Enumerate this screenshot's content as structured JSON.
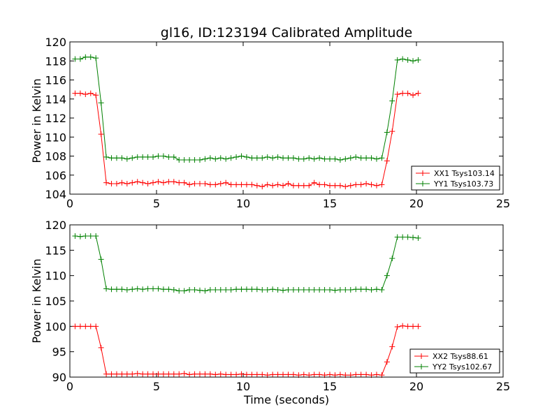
{
  "chart_data": [
    {
      "type": "line",
      "title": "gl16, ID:123194 Calibrated Amplitude",
      "xlabel": "",
      "ylabel": "Power in Kelvin",
      "xlim": [
        0,
        25
      ],
      "ylim": [
        104,
        120
      ],
      "xticks": [
        "0",
        "5",
        "10",
        "15",
        "20",
        "25"
      ],
      "yticks": [
        "104",
        "106",
        "108",
        "110",
        "112",
        "114",
        "116",
        "118",
        "120"
      ],
      "grid": false,
      "legend": "lower-right",
      "x": [
        0.3,
        0.6,
        0.9,
        1.2,
        1.5,
        1.8,
        2.1,
        2.4,
        2.7,
        3.0,
        3.3,
        3.6,
        3.9,
        4.2,
        4.5,
        4.8,
        5.1,
        5.4,
        5.7,
        6.0,
        6.3,
        6.6,
        6.9,
        7.2,
        7.5,
        7.8,
        8.1,
        8.4,
        8.7,
        9.0,
        9.3,
        9.6,
        9.9,
        10.2,
        10.5,
        10.8,
        11.1,
        11.4,
        11.7,
        12.0,
        12.3,
        12.6,
        12.9,
        13.2,
        13.5,
        13.8,
        14.1,
        14.4,
        14.7,
        15.0,
        15.3,
        15.6,
        15.9,
        16.2,
        16.5,
        16.8,
        17.1,
        17.4,
        17.7,
        18.0,
        18.3,
        18.6,
        18.9,
        19.2,
        19.5,
        19.8,
        20.1
      ],
      "series": [
        {
          "name": "XX1 Tsys103.14",
          "color": "#ff0000",
          "values": [
            114.6,
            114.6,
            114.5,
            114.6,
            114.4,
            110.3,
            105.2,
            105.1,
            105.1,
            105.2,
            105.1,
            105.2,
            105.3,
            105.2,
            105.1,
            105.2,
            105.3,
            105.2,
            105.3,
            105.3,
            105.2,
            105.2,
            105.0,
            105.1,
            105.1,
            105.1,
            105.0,
            105.0,
            105.1,
            105.2,
            105.0,
            105.0,
            105.0,
            105.0,
            105.0,
            104.9,
            104.8,
            105.0,
            104.9,
            105.0,
            104.9,
            105.1,
            104.9,
            104.9,
            104.9,
            104.9,
            105.2,
            105.0,
            105.0,
            104.9,
            104.9,
            104.9,
            104.8,
            104.9,
            105.0,
            105.0,
            105.1,
            105.0,
            104.9,
            105.0,
            107.5,
            110.6,
            114.5,
            114.6,
            114.6,
            114.4,
            114.6
          ]
        },
        {
          "name": "YY1 Tsys103.73",
          "color": "#008000",
          "values": [
            118.2,
            118.2,
            118.4,
            118.4,
            118.3,
            113.6,
            107.9,
            107.8,
            107.8,
            107.8,
            107.7,
            107.8,
            107.9,
            107.9,
            107.9,
            107.9,
            108.0,
            108.0,
            107.9,
            107.9,
            107.6,
            107.6,
            107.6,
            107.6,
            107.6,
            107.7,
            107.8,
            107.7,
            107.8,
            107.7,
            107.8,
            107.9,
            108.0,
            107.9,
            107.8,
            107.8,
            107.8,
            107.9,
            107.8,
            107.9,
            107.8,
            107.8,
            107.8,
            107.7,
            107.7,
            107.8,
            107.7,
            107.8,
            107.7,
            107.7,
            107.7,
            107.6,
            107.7,
            107.8,
            107.9,
            107.8,
            107.8,
            107.8,
            107.7,
            107.8,
            110.5,
            113.8,
            118.1,
            118.2,
            118.1,
            118.0,
            118.1
          ]
        }
      ]
    },
    {
      "type": "line",
      "title": "",
      "xlabel": "Time (seconds)",
      "ylabel": "Power in Kelvin",
      "xlim": [
        0,
        25
      ],
      "ylim": [
        90,
        120
      ],
      "xticks": [
        "0",
        "5",
        "10",
        "15",
        "20",
        "25"
      ],
      "yticks": [
        "90",
        "95",
        "100",
        "105",
        "110",
        "115",
        "120"
      ],
      "grid": false,
      "legend": "lower-right",
      "x": [
        0.3,
        0.6,
        0.9,
        1.2,
        1.5,
        1.8,
        2.1,
        2.4,
        2.7,
        3.0,
        3.3,
        3.6,
        3.9,
        4.2,
        4.5,
        4.8,
        5.1,
        5.4,
        5.7,
        6.0,
        6.3,
        6.6,
        6.9,
        7.2,
        7.5,
        7.8,
        8.1,
        8.4,
        8.7,
        9.0,
        9.3,
        9.6,
        9.9,
        10.2,
        10.5,
        10.8,
        11.1,
        11.4,
        11.7,
        12.0,
        12.3,
        12.6,
        12.9,
        13.2,
        13.5,
        13.8,
        14.1,
        14.4,
        14.7,
        15.0,
        15.3,
        15.6,
        15.9,
        16.2,
        16.5,
        16.8,
        17.1,
        17.4,
        17.7,
        18.0,
        18.3,
        18.6,
        18.9,
        19.2,
        19.5,
        19.8,
        20.1
      ],
      "series": [
        {
          "name": "XX2 Tsys88.61",
          "color": "#ff0000",
          "values": [
            100.0,
            100.0,
            100.0,
            100.0,
            100.0,
            95.8,
            90.6,
            90.6,
            90.6,
            90.6,
            90.6,
            90.6,
            90.7,
            90.6,
            90.6,
            90.6,
            90.6,
            90.6,
            90.6,
            90.6,
            90.6,
            90.7,
            90.5,
            90.6,
            90.6,
            90.6,
            90.6,
            90.5,
            90.6,
            90.5,
            90.5,
            90.5,
            90.6,
            90.5,
            90.5,
            90.5,
            90.5,
            90.4,
            90.5,
            90.5,
            90.5,
            90.5,
            90.5,
            90.4,
            90.5,
            90.4,
            90.5,
            90.5,
            90.4,
            90.5,
            90.4,
            90.5,
            90.4,
            90.4,
            90.5,
            90.5,
            90.5,
            90.4,
            90.5,
            90.4,
            93.0,
            96.0,
            99.9,
            100.1,
            100.0,
            100.0,
            100.0
          ]
        },
        {
          "name": "YY2 Tsys102.67",
          "color": "#008000",
          "values": [
            117.8,
            117.7,
            117.8,
            117.8,
            117.8,
            113.2,
            107.4,
            107.3,
            107.3,
            107.3,
            107.2,
            107.3,
            107.4,
            107.3,
            107.4,
            107.4,
            107.4,
            107.3,
            107.3,
            107.2,
            107.0,
            107.0,
            107.2,
            107.2,
            107.1,
            107.0,
            107.2,
            107.2,
            107.2,
            107.2,
            107.2,
            107.3,
            107.3,
            107.3,
            107.3,
            107.3,
            107.2,
            107.2,
            107.3,
            107.2,
            107.1,
            107.2,
            107.2,
            107.2,
            107.2,
            107.2,
            107.2,
            107.2,
            107.2,
            107.2,
            107.1,
            107.2,
            107.2,
            107.2,
            107.3,
            107.3,
            107.3,
            107.2,
            107.3,
            107.2,
            110.0,
            113.4,
            117.6,
            117.6,
            117.6,
            117.5,
            117.4
          ]
        }
      ]
    }
  ]
}
